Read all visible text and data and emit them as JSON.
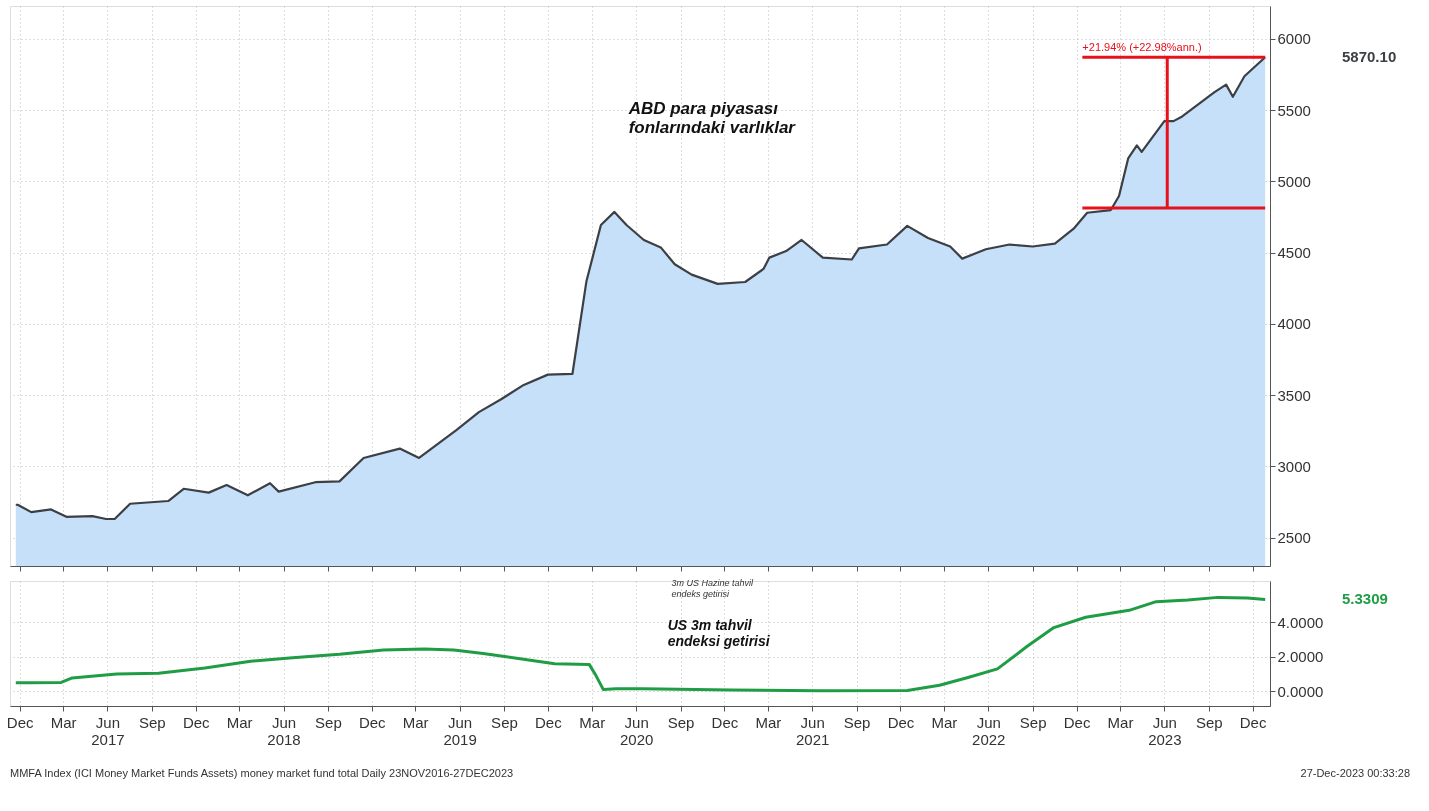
{
  "chart_data": [
    {
      "type": "area",
      "annotations": [
        "ABD para piyasası\nfonlarındaki varlıklar",
        {
          "text": "+21.94% (+22.98%ann.)",
          "x": "2022-12-13",
          "y": 5870.1
        },
        "5870.10"
      ],
      "series": [
        {
          "color": "#c6e0f9",
          "x": [
            "2016-11-23",
            "2016-11-27",
            "2016-12-25",
            "2017-02-04",
            "2017-03-08",
            "2017-05-01",
            "2017-05-29",
            "2017-06-16",
            "2017-07-18",
            "2017-10-05",
            "2017-11-06",
            "2017-12-28",
            "2018-02-03",
            "2018-03-19",
            "2018-05-04",
            "2018-05-22",
            "2018-08-06",
            "2018-09-25",
            "2018-11-14",
            "2019-01-28",
            "2019-03-09",
            "2019-05-26",
            "2019-07-11",
            "2019-08-27",
            "2019-10-12",
            "2019-12-01",
            "2020-01-21",
            "2020-02-19",
            "2020-03-20",
            "2020-04-17",
            "2020-05-12",
            "2020-06-17",
            "2020-07-22",
            "2020-08-20",
            "2020-09-24",
            "2020-11-17",
            "2021-01-13",
            "2021-02-20",
            "2021-03-04",
            "2021-04-08",
            "2021-05-10",
            "2021-06-23",
            "2021-08-22",
            "2021-09-06",
            "2021-11-03",
            "2021-12-15",
            "2022-01-27",
            "2022-03-14",
            "2022-04-08",
            "2022-05-27",
            "2022-07-15",
            "2022-09-01",
            "2022-10-17",
            "2022-11-25",
            "2022-12-23",
            "2023-02-10",
            "2023-02-27",
            "2023-03-18",
            "2023-04-05",
            "2023-04-15",
            "2023-06-01",
            "2023-06-20",
            "2023-07-08",
            "2023-09-13",
            "2023-10-07",
            "2023-10-21",
            "2023-11-14",
            "2023-12-27"
          ],
          "values": [
            2730,
            2730,
            2678,
            2697,
            2645,
            2650,
            2630,
            2630,
            2737,
            2756,
            2842,
            2815,
            2868,
            2796,
            2881,
            2822,
            2888,
            2894,
            3058,
            3124,
            3058,
            3256,
            3380,
            3472,
            3571,
            3643,
            3649,
            4299,
            4693,
            4785,
            4693,
            4588,
            4536,
            4418,
            4345,
            4280,
            4293,
            4385,
            4464,
            4510,
            4588,
            4464,
            4451,
            4529,
            4556,
            4687,
            4602,
            4542,
            4457,
            4523,
            4556,
            4542,
            4562,
            4667,
            4779,
            4798,
            4897,
            5160,
            5252,
            5206,
            5422,
            5422,
            5455,
            5626,
            5678,
            5593,
            5737,
            5870.1
          ]
        },
        {
          "type": "line",
          "color": "#e8101a",
          "x": [
            "2022-12-13",
            "2023-12-27"
          ],
          "values": [
            4812,
            4812
          ]
        },
        {
          "type": "line",
          "color": "#e8101a",
          "x": [
            "2022-12-13",
            "2023-12-27"
          ],
          "values": [
            5870.1,
            5870.1
          ]
        },
        {
          "type": "line",
          "color": "#e8101a",
          "x": [
            "2023-06-07",
            "2023-06-07"
          ],
          "values": [
            4812,
            5870.1
          ]
        }
      ],
      "xlim": [
        "2016-11-11",
        "2024-01-06"
      ],
      "ylim": [
        2300,
        6230
      ],
      "yticks": [
        2500,
        3000,
        3500,
        4000,
        4500,
        5000,
        5500,
        6000
      ],
      "xticks": [
        {
          "value": "2016-12-01",
          "label": null
        },
        {
          "value": "2017-03-01",
          "label": null
        },
        {
          "value": "2017-06-01",
          "label": null
        },
        {
          "value": "2017-09-01",
          "label": null
        },
        {
          "value": "2017-12-01",
          "label": null
        },
        {
          "value": "2018-03-01",
          "label": null
        },
        {
          "value": "2018-06-01",
          "label": null
        },
        {
          "value": "2018-09-01",
          "label": null
        },
        {
          "value": "2018-12-01",
          "label": null
        },
        {
          "value": "2019-03-01",
          "label": null
        },
        {
          "value": "2019-06-01",
          "label": null
        },
        {
          "value": "2019-09-01",
          "label": null
        },
        {
          "value": "2019-12-01",
          "label": null
        },
        {
          "value": "2020-03-01",
          "label": null
        },
        {
          "value": "2020-06-01",
          "label": null
        },
        {
          "value": "2020-09-01",
          "label": null
        },
        {
          "value": "2020-12-01",
          "label": null
        },
        {
          "value": "2021-03-01",
          "label": null
        },
        {
          "value": "2021-06-01",
          "label": null
        },
        {
          "value": "2021-09-01",
          "label": null
        },
        {
          "value": "2021-12-01",
          "label": null
        },
        {
          "value": "2022-03-01",
          "label": null
        },
        {
          "value": "2022-06-01",
          "label": null
        },
        {
          "value": "2022-09-01",
          "label": null
        },
        {
          "value": "2022-12-01",
          "label": null
        },
        {
          "value": "2023-03-01",
          "label": null
        },
        {
          "value": "2023-06-01",
          "label": null
        },
        {
          "value": "2023-09-01",
          "label": null
        },
        {
          "value": "2023-12-01",
          "label": null
        }
      ],
      "tick_labels": "y",
      "grid": true
    },
    {
      "type": "line",
      "annotations": [
        "3m US Hazine tahvil\nendeks getirisi",
        "US 3m tahvil\nendeksi getirisi",
        "5.3309",
        "MMFA Index (ICI Money Market Funds Assets) money market fund total  Daily 23NOV2016-27DEC2023",
        "27-Dec-2023 00:33:28"
      ],
      "series": [
        {
          "color": "#1f9d45",
          "x": [
            "2016-11-23",
            "2016-12-20",
            "2017-02-25",
            "2017-03-20",
            "2017-06-20",
            "2017-09-15",
            "2017-12-20",
            "2018-03-25",
            "2018-06-20",
            "2018-09-25",
            "2018-12-25",
            "2019-03-20",
            "2019-05-20",
            "2019-07-20",
            "2019-09-20",
            "2019-12-15",
            "2020-02-25",
            "2020-03-10",
            "2020-03-25",
            "2020-04-20",
            "2020-06-15",
            "2020-12-15",
            "2021-06-15",
            "2021-12-15",
            "2022-02-20",
            "2022-04-20",
            "2022-06-20",
            "2022-08-20",
            "2022-10-15",
            "2022-12-20",
            "2023-03-20",
            "2023-05-15",
            "2023-07-20",
            "2023-09-20",
            "2023-11-20",
            "2023-12-27"
          ],
          "values": [
            0.5,
            0.5,
            0.52,
            0.78,
            1.0,
            1.05,
            1.35,
            1.75,
            1.95,
            2.15,
            2.4,
            2.45,
            2.4,
            2.2,
            1.95,
            1.6,
            1.55,
            0.9,
            0.1,
            0.15,
            0.15,
            0.08,
            0.03,
            0.05,
            0.35,
            0.8,
            1.3,
            2.6,
            3.7,
            4.3,
            4.7,
            5.2,
            5.3,
            5.45,
            5.42,
            5.3309
          ]
        }
      ],
      "xlim": [
        "2016-11-11",
        "2024-01-06"
      ],
      "ylim": [
        -0.85,
        6.4
      ],
      "yticks": [
        {
          "value": 0,
          "label": "0.0000"
        },
        {
          "value": 2,
          "label": "2.0000"
        },
        {
          "value": 4,
          "label": "4.0000"
        }
      ],
      "xticks": [
        {
          "value": "2016-12-01",
          "label": "Dec"
        },
        {
          "value": "2017-03-01",
          "label": "Mar"
        },
        {
          "value": "2017-06-01",
          "label": "Jun\n2017"
        },
        {
          "value": "2017-09-01",
          "label": "Sep"
        },
        {
          "value": "2017-12-01",
          "label": "Dec"
        },
        {
          "value": "2018-03-01",
          "label": "Mar"
        },
        {
          "value": "2018-06-01",
          "label": "Jun\n2018"
        },
        {
          "value": "2018-09-01",
          "label": "Sep"
        },
        {
          "value": "2018-12-01",
          "label": "Dec"
        },
        {
          "value": "2019-03-01",
          "label": "Mar"
        },
        {
          "value": "2019-06-01",
          "label": "Jun\n2019"
        },
        {
          "value": "2019-09-01",
          "label": "Sep"
        },
        {
          "value": "2019-12-01",
          "label": "Dec"
        },
        {
          "value": "2020-03-01",
          "label": "Mar"
        },
        {
          "value": "2020-06-01",
          "label": "Jun\n2020"
        },
        {
          "value": "2020-09-01",
          "label": "Sep"
        },
        {
          "value": "2020-12-01",
          "label": "Dec"
        },
        {
          "value": "2021-03-01",
          "label": "Mar"
        },
        {
          "value": "2021-06-01",
          "label": "Jun\n2021"
        },
        {
          "value": "2021-09-01",
          "label": "Sep"
        },
        {
          "value": "2021-12-01",
          "label": "Dec"
        },
        {
          "value": "2022-03-01",
          "label": "Mar"
        },
        {
          "value": "2022-06-01",
          "label": "Jun\n2022"
        },
        {
          "value": "2022-09-01",
          "label": "Sep"
        },
        {
          "value": "2022-12-01",
          "label": "Dec"
        },
        {
          "value": "2023-03-01",
          "label": "Mar"
        },
        {
          "value": "2023-06-01",
          "label": "Jun\n2023"
        },
        {
          "value": "2023-09-01",
          "label": "Sep"
        },
        {
          "value": "2023-12-01",
          "label": "Dec"
        }
      ],
      "grid": true
    }
  ]
}
